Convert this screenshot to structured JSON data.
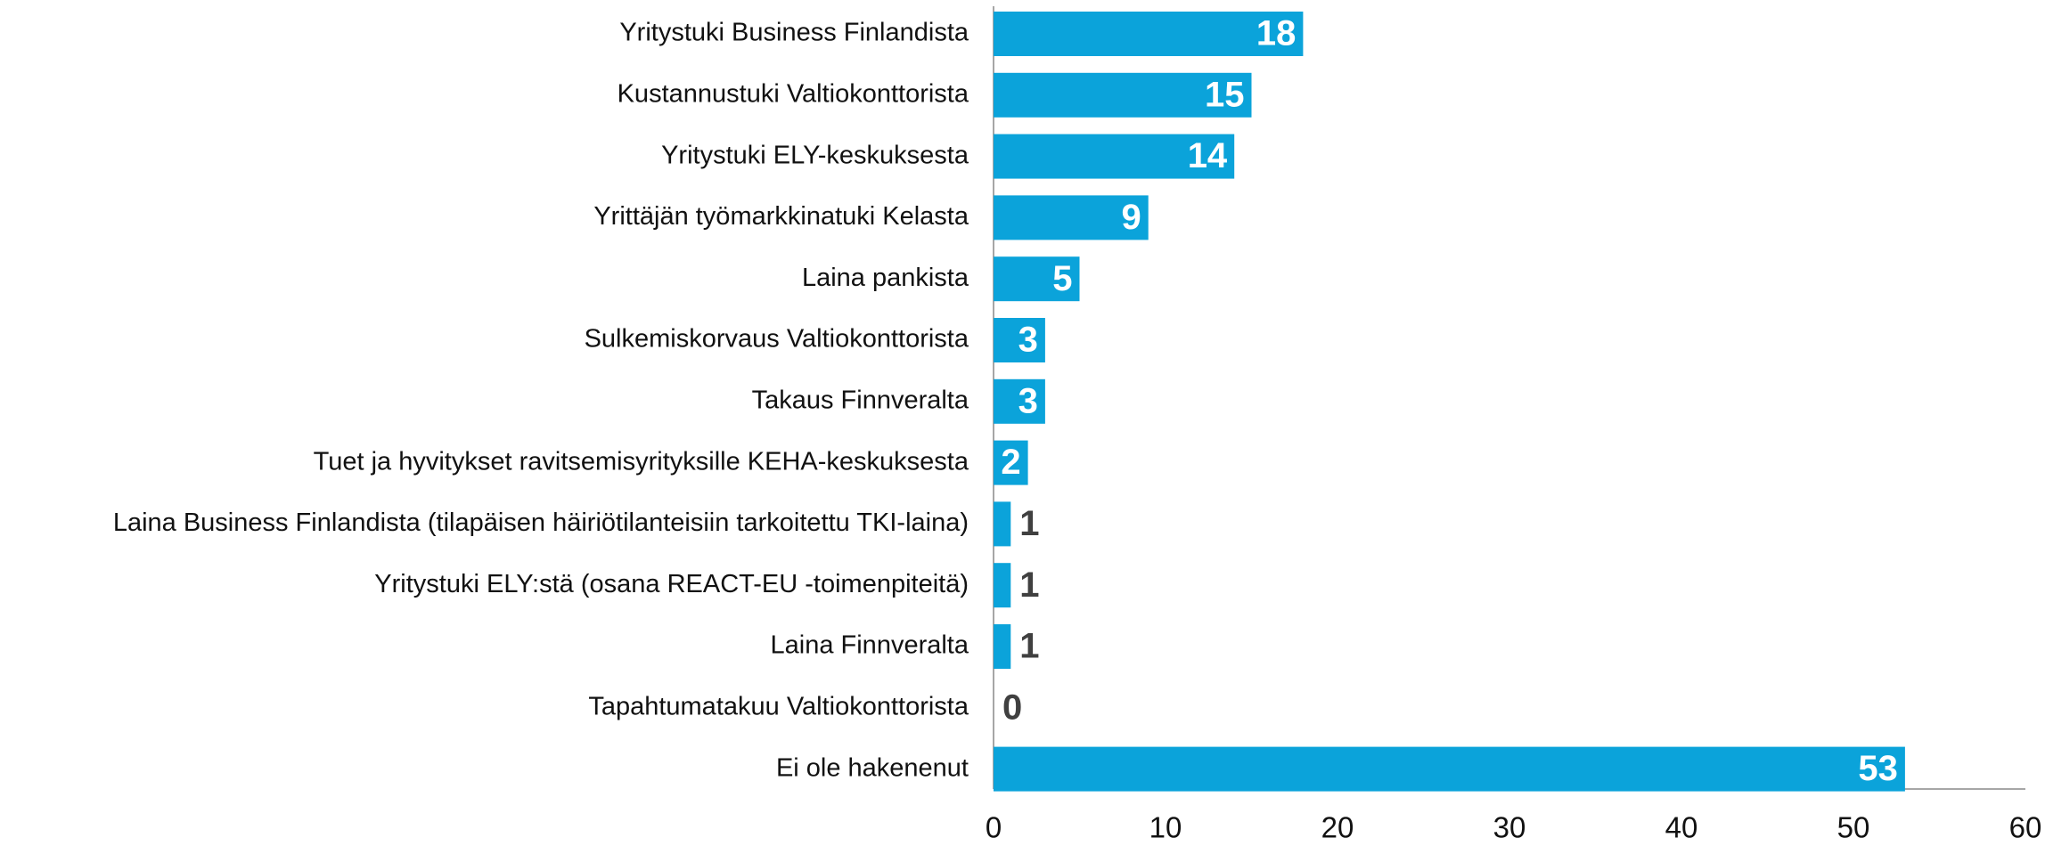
{
  "chart_data": {
    "type": "barh",
    "categories": [
      "Yritystuki Business Finlandista",
      "Kustannustuki Valtiokonttorista",
      "Yritystuki ELY-keskuksesta",
      "Yrittäjän työmarkkinatuki Kelasta",
      "Laina pankista",
      "Sulkemiskorvaus Valtiokonttorista",
      "Takaus Finnveralta",
      "Tuet ja hyvitykset ravitsemisyrityksille KEHA-keskuksesta",
      "Laina Business Finlandista (tilapäisen häiriötilanteisiin tarkoitettu TKI-laina)",
      "Yritystuki ELY:stä (osana REACT-EU -toimenpiteitä)",
      "Laina Finnveralta",
      "Tapahtumatakuu Valtiokonttorista",
      "Ei ole hakenenut"
    ],
    "values": [
      18,
      15,
      14,
      9,
      5,
      3,
      3,
      2,
      1,
      1,
      1,
      0,
      53
    ],
    "color": "#0ba3da",
    "xlim": [
      0,
      60
    ],
    "xticks": [
      0,
      10,
      20,
      30,
      40,
      50,
      60
    ],
    "grid": false
  }
}
